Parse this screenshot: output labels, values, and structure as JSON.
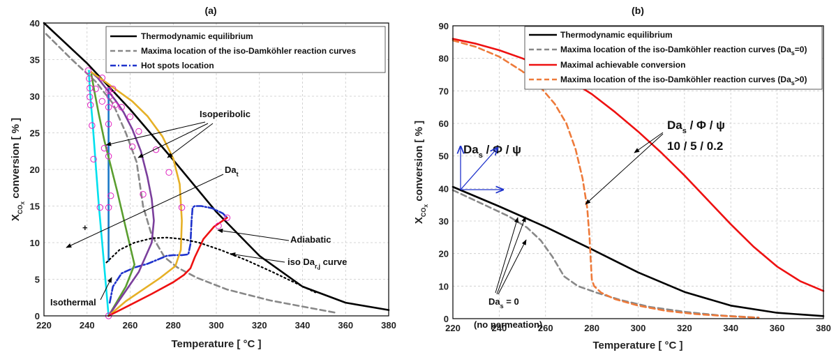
{
  "chart_data": [
    {
      "panel": "a",
      "title": "(a)",
      "type": "line",
      "xlabel": "Temperature [ °C ]",
      "ylabel_main": "X",
      "ylabel_sub": "CO",
      "ylabel_subsub": "X",
      "ylabel_rest": " conversion [ % ]",
      "xlim": [
        220,
        380
      ],
      "ylim": [
        0,
        40
      ],
      "xticks": [
        220,
        240,
        260,
        280,
        300,
        320,
        340,
        360,
        380
      ],
      "yticks": [
        0,
        5,
        10,
        15,
        20,
        25,
        30,
        35,
        40
      ],
      "grid": true,
      "legend_position": "top-right",
      "legend": [
        {
          "label": "Thermodynamic equilibrium",
          "color": "#000000",
          "style": "solid"
        },
        {
          "label": "Maxima location of the iso-Damköhler reaction curves",
          "color": "#888888",
          "style": "dashed"
        },
        {
          "label": "Hot spots location",
          "color": "#1f33cc",
          "style": "dashdot"
        }
      ],
      "series": [
        {
          "name": "Thermodynamic equilibrium",
          "color": "#000000",
          "style": "solid",
          "x": [
            220,
            240,
            260,
            280,
            300,
            320,
            340,
            360,
            380
          ],
          "y": [
            40,
            34.5,
            28.2,
            21.3,
            14.2,
            8.2,
            4.0,
            1.8,
            0.8
          ]
        },
        {
          "name": "Maxima location of the iso-Damköhler reaction curves",
          "color": "#888888",
          "style": "dashed",
          "x": [
            221,
            233,
            244,
            252,
            258,
            263,
            266,
            270,
            276,
            282,
            291,
            305,
            325,
            345,
            356
          ],
          "y": [
            38.5,
            35,
            32,
            29,
            25,
            21,
            15,
            11,
            8,
            6.6,
            5.2,
            3.6,
            2.1,
            1.0,
            0.4
          ]
        },
        {
          "name": "Hot spots location",
          "color": "#1f33cc",
          "style": "dashdot",
          "x": [
            250.5,
            252,
            256,
            262,
            268,
            273,
            277,
            280,
            284,
            287,
            288,
            288.5,
            289,
            290,
            293,
            298,
            303,
            305
          ],
          "y": [
            1.8,
            4.0,
            5.8,
            6.6,
            7.1,
            7.7,
            8.2,
            8.3,
            8.3,
            8.4,
            9.8,
            13.0,
            14.8,
            15.0,
            15.0,
            14.7,
            14.0,
            13.4
          ]
        },
        {
          "name": "",
          "color": "#00e0ee",
          "style": "solid",
          "x": [
            250,
            248.5,
            247,
            245.5,
            244.2,
            243.2,
            242.4,
            241.8,
            241.3,
            241.0,
            240.9
          ],
          "y": [
            0,
            5,
            10,
            15,
            20,
            24,
            27,
            29,
            31,
            32.5,
            33.5
          ]
        },
        {
          "name": "",
          "color": "#1a78c8",
          "style": "solid",
          "x": [
            250,
            250,
            250,
            250,
            250,
            250,
            250,
            250,
            250,
            250,
            250
          ],
          "y": [
            7.5,
            10,
            12.5,
            15,
            17.5,
            20,
            22.5,
            25,
            27.5,
            29.5,
            31
          ]
        },
        {
          "name": "",
          "color": "#5a9e2f",
          "style": "solid",
          "x": [
            250,
            254,
            258,
            262,
            258,
            254,
            251,
            248,
            245.5,
            243.5,
            242
          ],
          "y": [
            0,
            2,
            4,
            7,
            12,
            17,
            20.5,
            24,
            27.5,
            30.5,
            33
          ]
        },
        {
          "name": "",
          "color": "#7b3f9c",
          "style": "solid",
          "x": [
            250,
            257,
            264,
            270,
            271,
            270,
            268,
            265,
            261,
            257,
            253,
            249,
            245,
            242
          ],
          "y": [
            0,
            3,
            6,
            10,
            13,
            16,
            19,
            22.5,
            25.5,
            27.8,
            29.5,
            31,
            32.5,
            33.3
          ]
        },
        {
          "name": "",
          "color": "#e6b026",
          "style": "solid",
          "x": [
            250,
            258,
            266,
            274,
            281,
            283.5,
            284,
            283,
            280,
            275,
            268,
            261,
            253,
            246,
            242
          ],
          "y": [
            0,
            2,
            3.6,
            5.2,
            6.8,
            9,
            13,
            18,
            21.5,
            24.5,
            27.3,
            29.3,
            31,
            32.5,
            33.3
          ]
        },
        {
          "name": "",
          "color": "#ee1111",
          "style": "solid",
          "x": [
            250,
            260,
            270,
            280,
            285,
            288,
            290,
            294,
            299,
            302,
            305
          ],
          "y": [
            0,
            1.5,
            3.0,
            4.6,
            5.6,
            6.5,
            8.0,
            10.5,
            12.2,
            12.8,
            13.4
          ]
        },
        {
          "name": "",
          "color": "#000000",
          "style": "dotted",
          "x": [
            249,
            255,
            262,
            270,
            277,
            284,
            292,
            302,
            314,
            326,
            336,
            346
          ],
          "y": [
            7.3,
            9.0,
            10.0,
            10.6,
            10.7,
            10.5,
            10.0,
            9.0,
            7.6,
            6.0,
            4.6,
            3.2
          ]
        }
      ],
      "markers": {
        "color": "#e020c0",
        "points": [
          [
            250,
            0
          ],
          [
            240.5,
            33.5
          ],
          [
            241,
            32.4
          ],
          [
            241.3,
            31.1
          ],
          [
            241.3,
            29.9
          ],
          [
            241.6,
            28.8
          ],
          [
            242.3,
            26.0
          ],
          [
            243.0,
            21.4
          ],
          [
            246,
            14.8
          ],
          [
            248,
            22.9
          ],
          [
            250,
            26.2
          ],
          [
            250,
            21.8
          ],
          [
            251,
            16.4
          ],
          [
            250,
            14.8
          ],
          [
            244,
            31.0
          ],
          [
            247,
            32.5
          ],
          [
            250,
            30.8
          ],
          [
            250.5,
            30.0
          ],
          [
            252,
            31.0
          ],
          [
            247,
            29.3
          ],
          [
            250,
            28.5
          ],
          [
            253,
            28.8
          ],
          [
            256,
            28.5
          ],
          [
            260,
            27.2
          ],
          [
            261,
            23.1
          ],
          [
            264,
            25.2
          ],
          [
            266,
            16.6
          ],
          [
            272,
            22.7
          ],
          [
            278,
            19.6
          ],
          [
            284,
            14.8
          ],
          [
            301,
            12.3
          ],
          [
            305,
            13.4
          ]
        ]
      },
      "annotations": {
        "isoperibolic": "Isoperibolic",
        "da_t_main": "Da",
        "da_t_sub": "t",
        "adiabatic": "Adiabatic",
        "iso_dar_main": "iso Da",
        "iso_dar_sub": "r,j",
        "iso_dar_rest": " curve",
        "isothermal": "Isothermal",
        "plus": "+"
      }
    },
    {
      "panel": "b",
      "title": "(b)",
      "type": "line",
      "xlabel": "Temperature [ °C ]",
      "ylabel_main": "X",
      "ylabel_sub": "CO",
      "ylabel_subsub": "X",
      "ylabel_rest": " conversion [ % ]",
      "xlim": [
        220,
        380
      ],
      "ylim": [
        0,
        90
      ],
      "xticks": [
        220,
        240,
        260,
        280,
        300,
        320,
        340,
        360,
        380
      ],
      "yticks": [
        0,
        10,
        20,
        30,
        40,
        50,
        60,
        70,
        80,
        90
      ],
      "grid": true,
      "legend_position": "top-right",
      "legend": [
        {
          "label": "Thermodynamic equilibrium",
          "color": "#000000",
          "style": "solid"
        },
        {
          "label": "Maxima location of the iso-Damköhler reaction curves (Da",
          "sub": "s",
          "tail": "=0)",
          "color": "#888888",
          "style": "dashed"
        },
        {
          "label": "Maximal achievable conversion",
          "color": "#ee1111",
          "style": "solid"
        },
        {
          "label": "Maxima location of the iso-Damköhler reaction curves (Da",
          "sub": "s",
          "tail": ">0)",
          "color": "#ee7a3a",
          "style": "dashed"
        }
      ],
      "series": [
        {
          "name": "Thermodynamic equilibrium",
          "color": "#000000",
          "style": "solid",
          "x": [
            220,
            240,
            260,
            280,
            300,
            320,
            340,
            360,
            380
          ],
          "y": [
            40.5,
            34.5,
            28.2,
            21.3,
            14.2,
            8.2,
            4.0,
            1.8,
            0.8
          ]
        },
        {
          "name": "Maxima location of the iso-Damköhler reaction curves (Da_s=0)",
          "color": "#888888",
          "style": "dashed",
          "x": [
            220,
            232,
            244,
            252,
            258,
            263,
            268,
            274,
            282,
            292,
            305,
            320,
            335,
            352
          ],
          "y": [
            39.5,
            35.5,
            31.5,
            28,
            24,
            19,
            13,
            10,
            8,
            5.8,
            3.6,
            2.1,
            1.0,
            0.3
          ]
        },
        {
          "name": "Maximal achievable conversion",
          "color": "#ee1111",
          "style": "solid",
          "x": [
            220,
            230,
            240,
            250,
            260,
            270,
            280,
            290,
            300,
            310,
            320,
            330,
            340,
            350,
            360,
            370,
            380
          ],
          "y": [
            86,
            84.5,
            82.5,
            80,
            77,
            73.5,
            69,
            63.5,
            57.5,
            51,
            44,
            36.5,
            29,
            22,
            16,
            11.5,
            8.5
          ]
        },
        {
          "name": "Maxima location of the iso-Damköhler reaction curves (Da_s>0)",
          "color": "#ee7a3a",
          "style": "dashed",
          "x": [
            220,
            230,
            240,
            250,
            258,
            264,
            269,
            273,
            276,
            278,
            279,
            279.5,
            280,
            281,
            284,
            290,
            300,
            312,
            325,
            340,
            352
          ],
          "y": [
            85.5,
            83.5,
            80.5,
            76,
            71,
            66,
            60,
            52,
            43,
            34,
            25,
            18,
            12,
            10,
            8,
            6,
            4,
            2.4,
            1.4,
            0.7,
            0.3
          ]
        }
      ],
      "annotations": {
        "das_right_main": "Da",
        "das_right_sub": "s",
        "das_right_rest": " / Φ / ψ",
        "das_right_values": "10 / 5 / 0.2",
        "das_left_main": "Da",
        "das_left_sub": "s",
        "das_left_rest": " / Φ / ψ",
        "das_zero_main": "Da",
        "das_zero_sub": "s",
        "das_zero_rest": " = 0",
        "no_permeation": "(no permeation)"
      }
    }
  ]
}
